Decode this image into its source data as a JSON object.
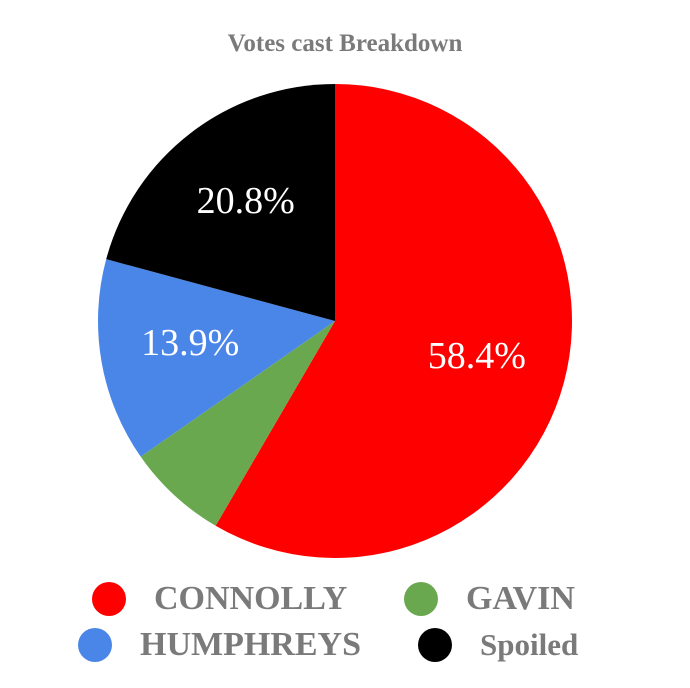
{
  "chart_data": {
    "type": "pie",
    "title": "Votes cast Breakdown",
    "slices": [
      {
        "label": "CONNOLLY",
        "value": 58.4,
        "display": "58.4%",
        "color": "#ff0000"
      },
      {
        "label": "GAVIN",
        "value": 6.9,
        "display": "",
        "color": "#6aa84f"
      },
      {
        "label": "HUMPHREYS",
        "value": 13.9,
        "display": "13.9%",
        "color": "#4a86e8"
      },
      {
        "label": "Spoiled",
        "value": 20.8,
        "display": "20.8%",
        "color": "#000000"
      }
    ],
    "legend": "bottom",
    "start_angle": "12 o'clock, clockwise"
  }
}
